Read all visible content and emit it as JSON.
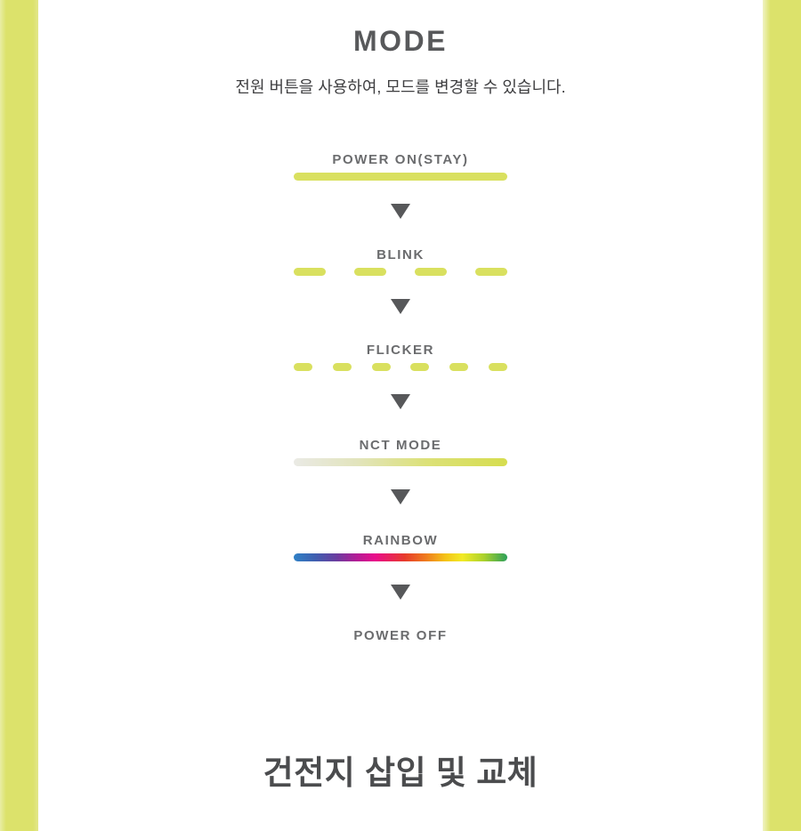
{
  "header": {
    "title": "MODE",
    "subtitle": "전원 버튼을 사용하여, 모드를 변경할 수 있습니다."
  },
  "modes": [
    {
      "label": "POWER ON(STAY)",
      "indicator": "solid-bar"
    },
    {
      "label": "BLINK",
      "indicator": "four-long-dashes"
    },
    {
      "label": "FLICKER",
      "indicator": "six-short-dashes"
    },
    {
      "label": "NCT MODE",
      "indicator": "gray-to-yellow-gradient-bar"
    },
    {
      "label": "RAINBOW",
      "indicator": "rainbow-gradient-bar"
    },
    {
      "label": "POWER OFF",
      "indicator": "none"
    }
  ],
  "icons": {
    "step_separator": "down-arrow-icon"
  },
  "footer": {
    "heading": "건전지 삽입 및 교체"
  },
  "colors": {
    "accent_yellow_green": "#d9e05f",
    "side_panel_yellow_green": "#dce26b",
    "title_gray": "#58595b",
    "label_gray": "#6b6c6e",
    "subtitle_gray": "#3f3f41",
    "arrow_gray": "#57585a",
    "footer_heading_gray": "#4b4c4e",
    "nct_gradient": [
      "#eaeae5",
      "#d6dd4f"
    ],
    "rainbow_gradient": [
      "#2f81c6",
      "#6a3d9f",
      "#e90d8b",
      "#e73b2b",
      "#ef7c1e",
      "#f2ea25",
      "#2ca05a"
    ]
  }
}
